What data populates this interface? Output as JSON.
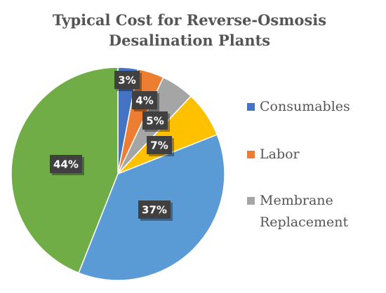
{
  "chart_data": {
    "type": "pie",
    "title": "Typical Cost for Reverse-Osmosis Desalination Plants",
    "title_lines": [
      "Typical Cost for Reverse-Osmosis",
      "Desalination Plants"
    ],
    "slices": [
      {
        "name": "Consumables",
        "value": 3,
        "label": "3%",
        "color": "#4472C4"
      },
      {
        "name": "Labor",
        "value": 4,
        "label": "4%",
        "color": "#ED7D31"
      },
      {
        "name": "Membrane Replacement",
        "value": 5,
        "label": "5%",
        "color": "#A5A5A5"
      },
      {
        "name": "",
        "value": 7,
        "label": "7%",
        "color": "#FFC000"
      },
      {
        "name": "",
        "value": 37,
        "label": "37%",
        "color": "#5B9BD5"
      },
      {
        "name": "",
        "value": 44,
        "label": "44%",
        "color": "#70AD47"
      }
    ],
    "legend": {
      "placement": "right",
      "entries": [
        {
          "lines": [
            "Consumables"
          ],
          "color": "#4472C4"
        },
        {
          "lines": [
            "Labor"
          ],
          "color": "#ED7D31"
        },
        {
          "lines": [
            "Membrane",
            "Replacement"
          ],
          "color": "#A5A5A5"
        }
      ]
    },
    "label_box_color": "#404040"
  }
}
